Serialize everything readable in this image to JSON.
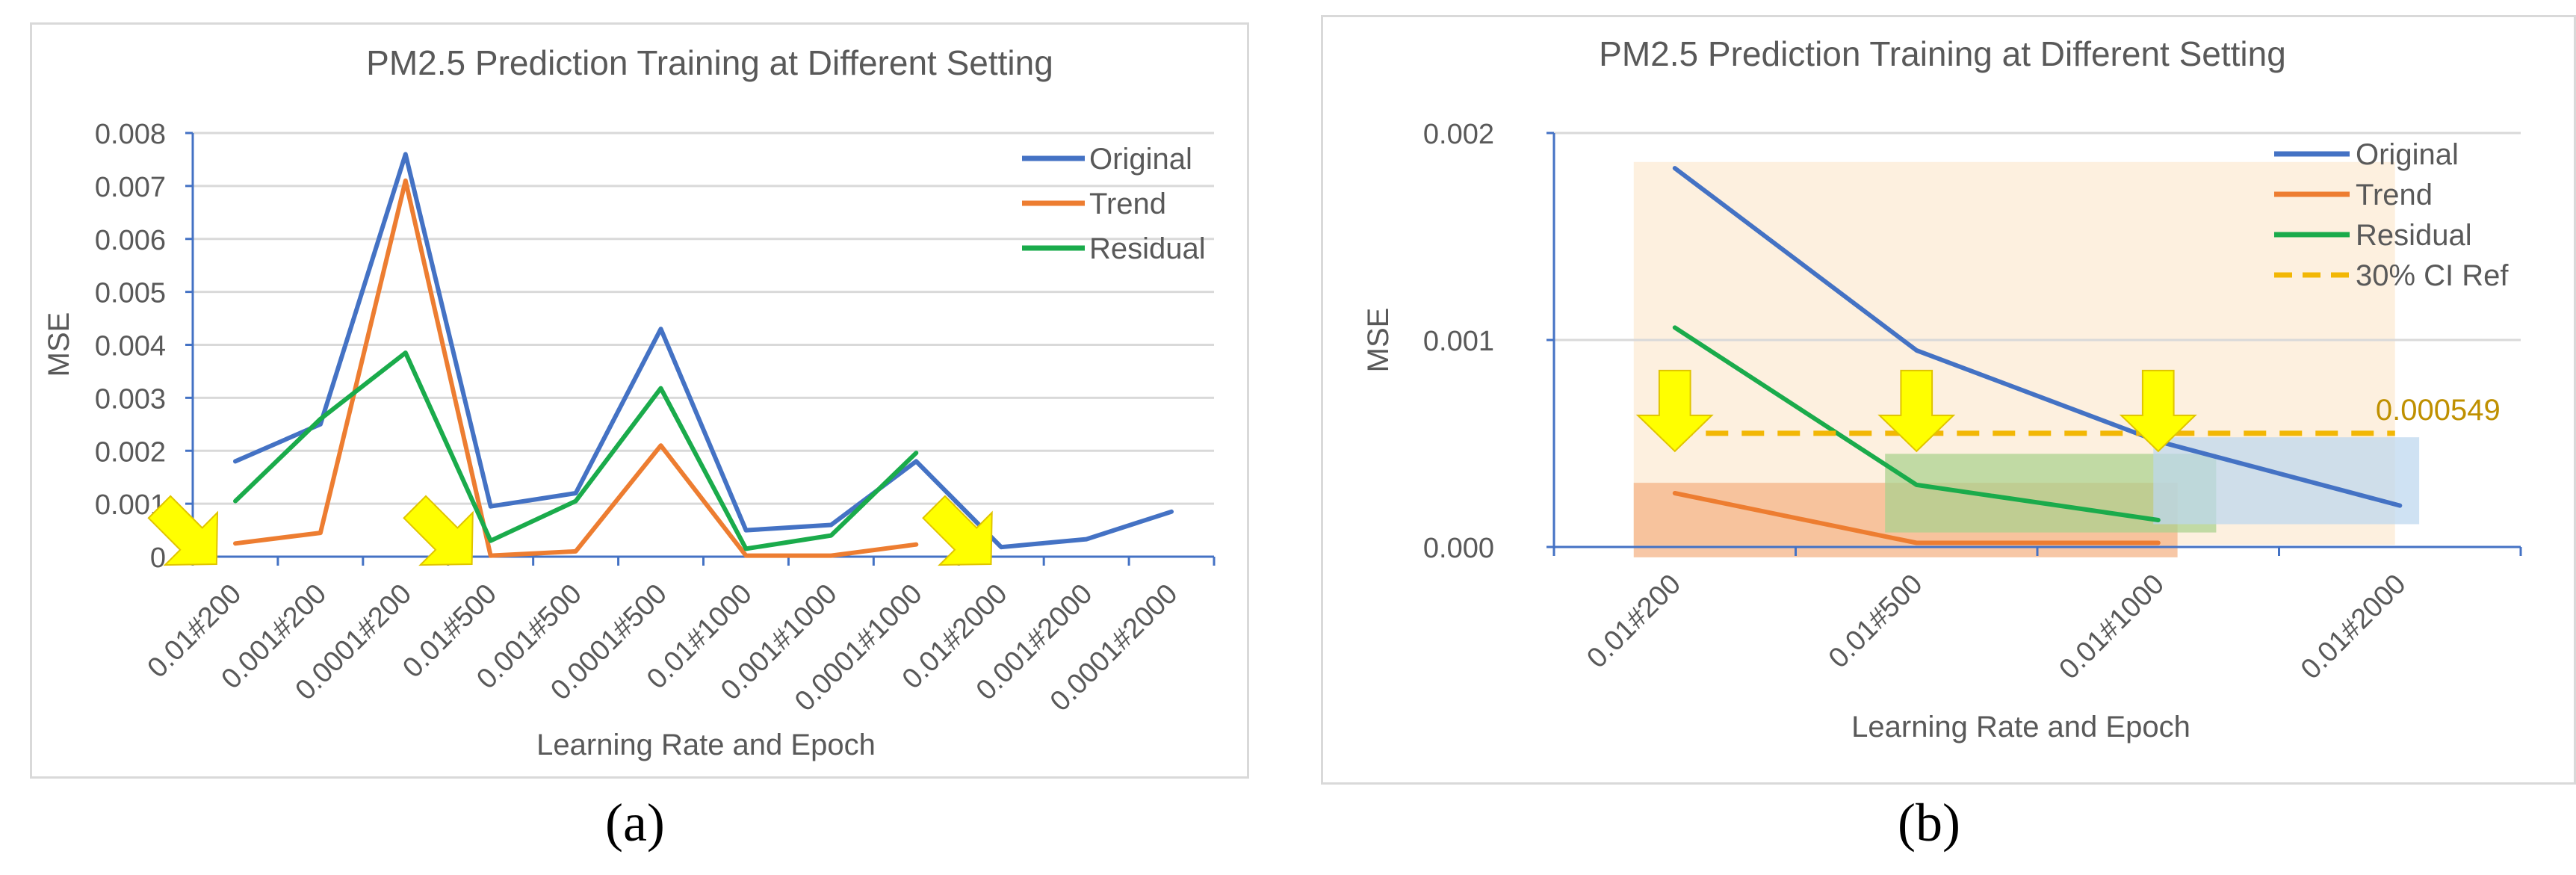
{
  "chart_data": [
    {
      "panel_label": "(a)",
      "type": "line",
      "title": "PM2.5 Prediction Training at Different Setting",
      "xlabel": "Learning Rate and Epoch",
      "ylabel": "MSE",
      "ylim": [
        0,
        0.008
      ],
      "yticks": [
        "0",
        "0.001",
        "0.002",
        "0.003",
        "0.004",
        "0.005",
        "0.006",
        "0.007",
        "0.008"
      ],
      "grid": true,
      "legend_position": "top-right",
      "categories": [
        "0.01#200",
        "0.001#200",
        "0.0001#200",
        "0.01#500",
        "0.001#500",
        "0.0001#500",
        "0.01#1000",
        "0.001#1000",
        "0.0001#1000",
        "0.01#2000",
        "0.001#2000",
        "0.0001#2000"
      ],
      "series": [
        {
          "name": "Original",
          "color": "#4472c4",
          "values": [
            0.0018,
            0.0025,
            0.0076,
            0.00095,
            0.0012,
            0.0043,
            0.0005,
            0.0006,
            0.0018,
            0.00018,
            0.00033,
            0.00085
          ]
        },
        {
          "name": "Trend",
          "color": "#ed7d31",
          "values": [
            0.00025,
            0.00045,
            0.0071,
            2e-05,
            0.0001,
            0.0021,
            2e-05,
            2e-05,
            0.00023,
            null,
            null,
            null
          ]
        },
        {
          "name": "Residual",
          "color": "#1aab4b",
          "values": [
            0.00105,
            0.0026,
            0.00385,
            0.0003,
            0.00105,
            0.00318,
            0.00015,
            0.0004,
            0.00196,
            null,
            null,
            null
          ]
        }
      ],
      "annotations": [
        {
          "type": "arrow",
          "color": "#ffff00",
          "category": "0.01#200"
        },
        {
          "type": "arrow",
          "color": "#ffff00",
          "category": "0.01#500"
        },
        {
          "type": "arrow",
          "color": "#ffff00",
          "category": "0.01#2000"
        }
      ]
    },
    {
      "panel_label": "(b)",
      "type": "line",
      "title": "PM2.5 Prediction Training at Different Setting",
      "xlabel": "Learning Rate and Epoch",
      "ylabel": "MSE",
      "ylim": [
        0,
        0.002
      ],
      "yticks": [
        "0.000",
        "0.001",
        "0.002"
      ],
      "grid": true,
      "legend_position": "top-right",
      "categories": [
        "0.01#200",
        "0.01#500",
        "0.01#1000",
        "0.01#2000"
      ],
      "series": [
        {
          "name": "Original",
          "color": "#4472c4",
          "values": [
            0.00183,
            0.00095,
            0.00051,
            0.0002
          ]
        },
        {
          "name": "Trend",
          "color": "#ed7d31",
          "values": [
            0.00026,
            2e-05,
            2e-05,
            null
          ]
        },
        {
          "name": "Residual",
          "color": "#1aab4b",
          "values": [
            0.00106,
            0.0003,
            0.00013,
            null
          ]
        },
        {
          "name": "30% CI Ref",
          "color": "#f2b705",
          "dashed": true,
          "values": [
            0.000549,
            0.000549,
            0.000549,
            0.000549
          ]
        }
      ],
      "reference_value_label": "0.000549",
      "regions": [
        {
          "color": "#fce4c4",
          "x_from": "0.01#200",
          "x_to": "0.01#2000",
          "y_from": 1e-05,
          "y_to": 0.00186
        },
        {
          "color": "#f4b183",
          "x_from": "0.01#200",
          "x_to": "0.01#1000",
          "y_from": -5e-05,
          "y_to": 0.00031
        },
        {
          "color": "#a9d18e",
          "x_from": "0.01#500",
          "x_to": "0.01#1000",
          "y_from": 7e-05,
          "y_to": 0.00045
        },
        {
          "color": "#bdd7ee",
          "x_from": "0.01#1000",
          "x_to": "0.01#2000",
          "y_from": 0.00011,
          "y_to": 0.00053
        }
      ],
      "annotations": [
        {
          "type": "arrow",
          "color": "#ffff00",
          "category": "0.01#200"
        },
        {
          "type": "arrow",
          "color": "#ffff00",
          "category": "0.01#500"
        },
        {
          "type": "arrow",
          "color": "#ffff00",
          "category": "0.01#1000"
        }
      ]
    }
  ]
}
